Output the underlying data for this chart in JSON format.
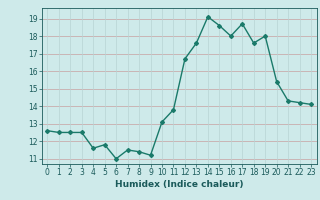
{
  "x": [
    0,
    1,
    2,
    3,
    4,
    5,
    6,
    7,
    8,
    9,
    10,
    11,
    12,
    13,
    14,
    15,
    16,
    17,
    18,
    19,
    20,
    21,
    22,
    23
  ],
  "y": [
    12.6,
    12.5,
    12.5,
    12.5,
    11.6,
    11.8,
    11.0,
    11.5,
    11.4,
    11.2,
    13.1,
    13.8,
    16.7,
    17.6,
    19.1,
    18.6,
    18.0,
    18.7,
    17.6,
    18.0,
    15.4,
    14.3,
    14.2,
    14.1
  ],
  "line_color": "#1a7a6a",
  "marker": "D",
  "markersize": 2.0,
  "linewidth": 1.0,
  "bg_color": "#ceeaea",
  "grid_color_h": "#c8a0a0",
  "grid_color_v": "#b8d4d4",
  "xlabel": "Humidex (Indice chaleur)",
  "xlim": [
    -0.5,
    23.5
  ],
  "ylim": [
    10.7,
    19.6
  ],
  "yticks": [
    11,
    12,
    13,
    14,
    15,
    16,
    17,
    18,
    19
  ],
  "xticks": [
    0,
    1,
    2,
    3,
    4,
    5,
    6,
    7,
    8,
    9,
    10,
    11,
    12,
    13,
    14,
    15,
    16,
    17,
    18,
    19,
    20,
    21,
    22,
    23
  ],
  "tick_color": "#1a5a5a",
  "label_fontsize": 6.5,
  "tick_fontsize": 5.5
}
